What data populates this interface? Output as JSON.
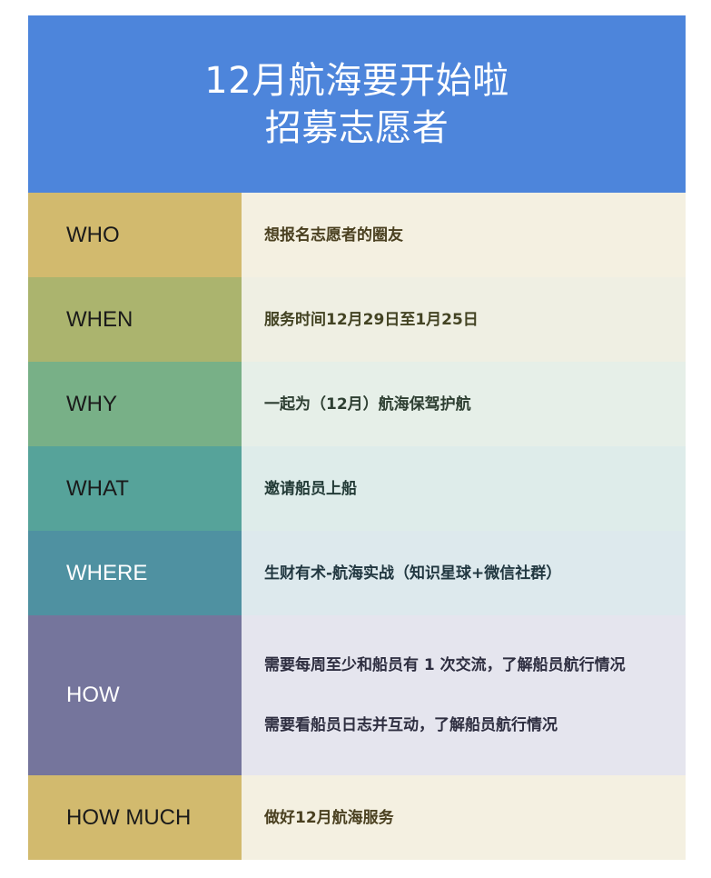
{
  "header": {
    "title_line1": "12月航海要开始啦",
    "title_line2": "招募志愿者"
  },
  "rows": [
    {
      "label": "WHO",
      "value": "想报名志愿者的圈友",
      "label_bg": "#d2ba6e",
      "value_bg": "#f4f0e1",
      "value_color": "#4a4020"
    },
    {
      "label": "WHEN",
      "value": "服务时间12月29日至1月25日",
      "label_bg": "#abb46e",
      "value_bg": "#efefe3",
      "value_color": "#434323"
    },
    {
      "label": "WHY",
      "value": "一起为（12月）航海保驾护航",
      "label_bg": "#78b087",
      "value_bg": "#e6efe8",
      "value_color": "#2e3f32"
    },
    {
      "label": "WHAT",
      "value": "邀请船员上船",
      "label_bg": "#56a39a",
      "value_bg": "#deecea",
      "value_color": "#233b37"
    },
    {
      "label": "WHERE",
      "value": "生财有术-航海实战（知识星球+微信社群）",
      "label_bg": "#4f91a1",
      "value_bg": "#dde9ed",
      "value_color": "#213740",
      "label_light": true
    },
    {
      "label": "HOW",
      "value": "需要每周至少和船员有 1 次交流，了解船员航行情况",
      "value2": "需要看船员日志并互动，了解船员航行情况",
      "label_bg": "#75759c",
      "value_bg": "#e5e5ee",
      "value_color": "#2e2e40",
      "label_light": true
    },
    {
      "label": "HOW MUCH",
      "value": "做好12月航海服务",
      "label_bg": "#d2ba6e",
      "value_bg": "#f4f0e1",
      "value_color": "#4a4020"
    }
  ]
}
